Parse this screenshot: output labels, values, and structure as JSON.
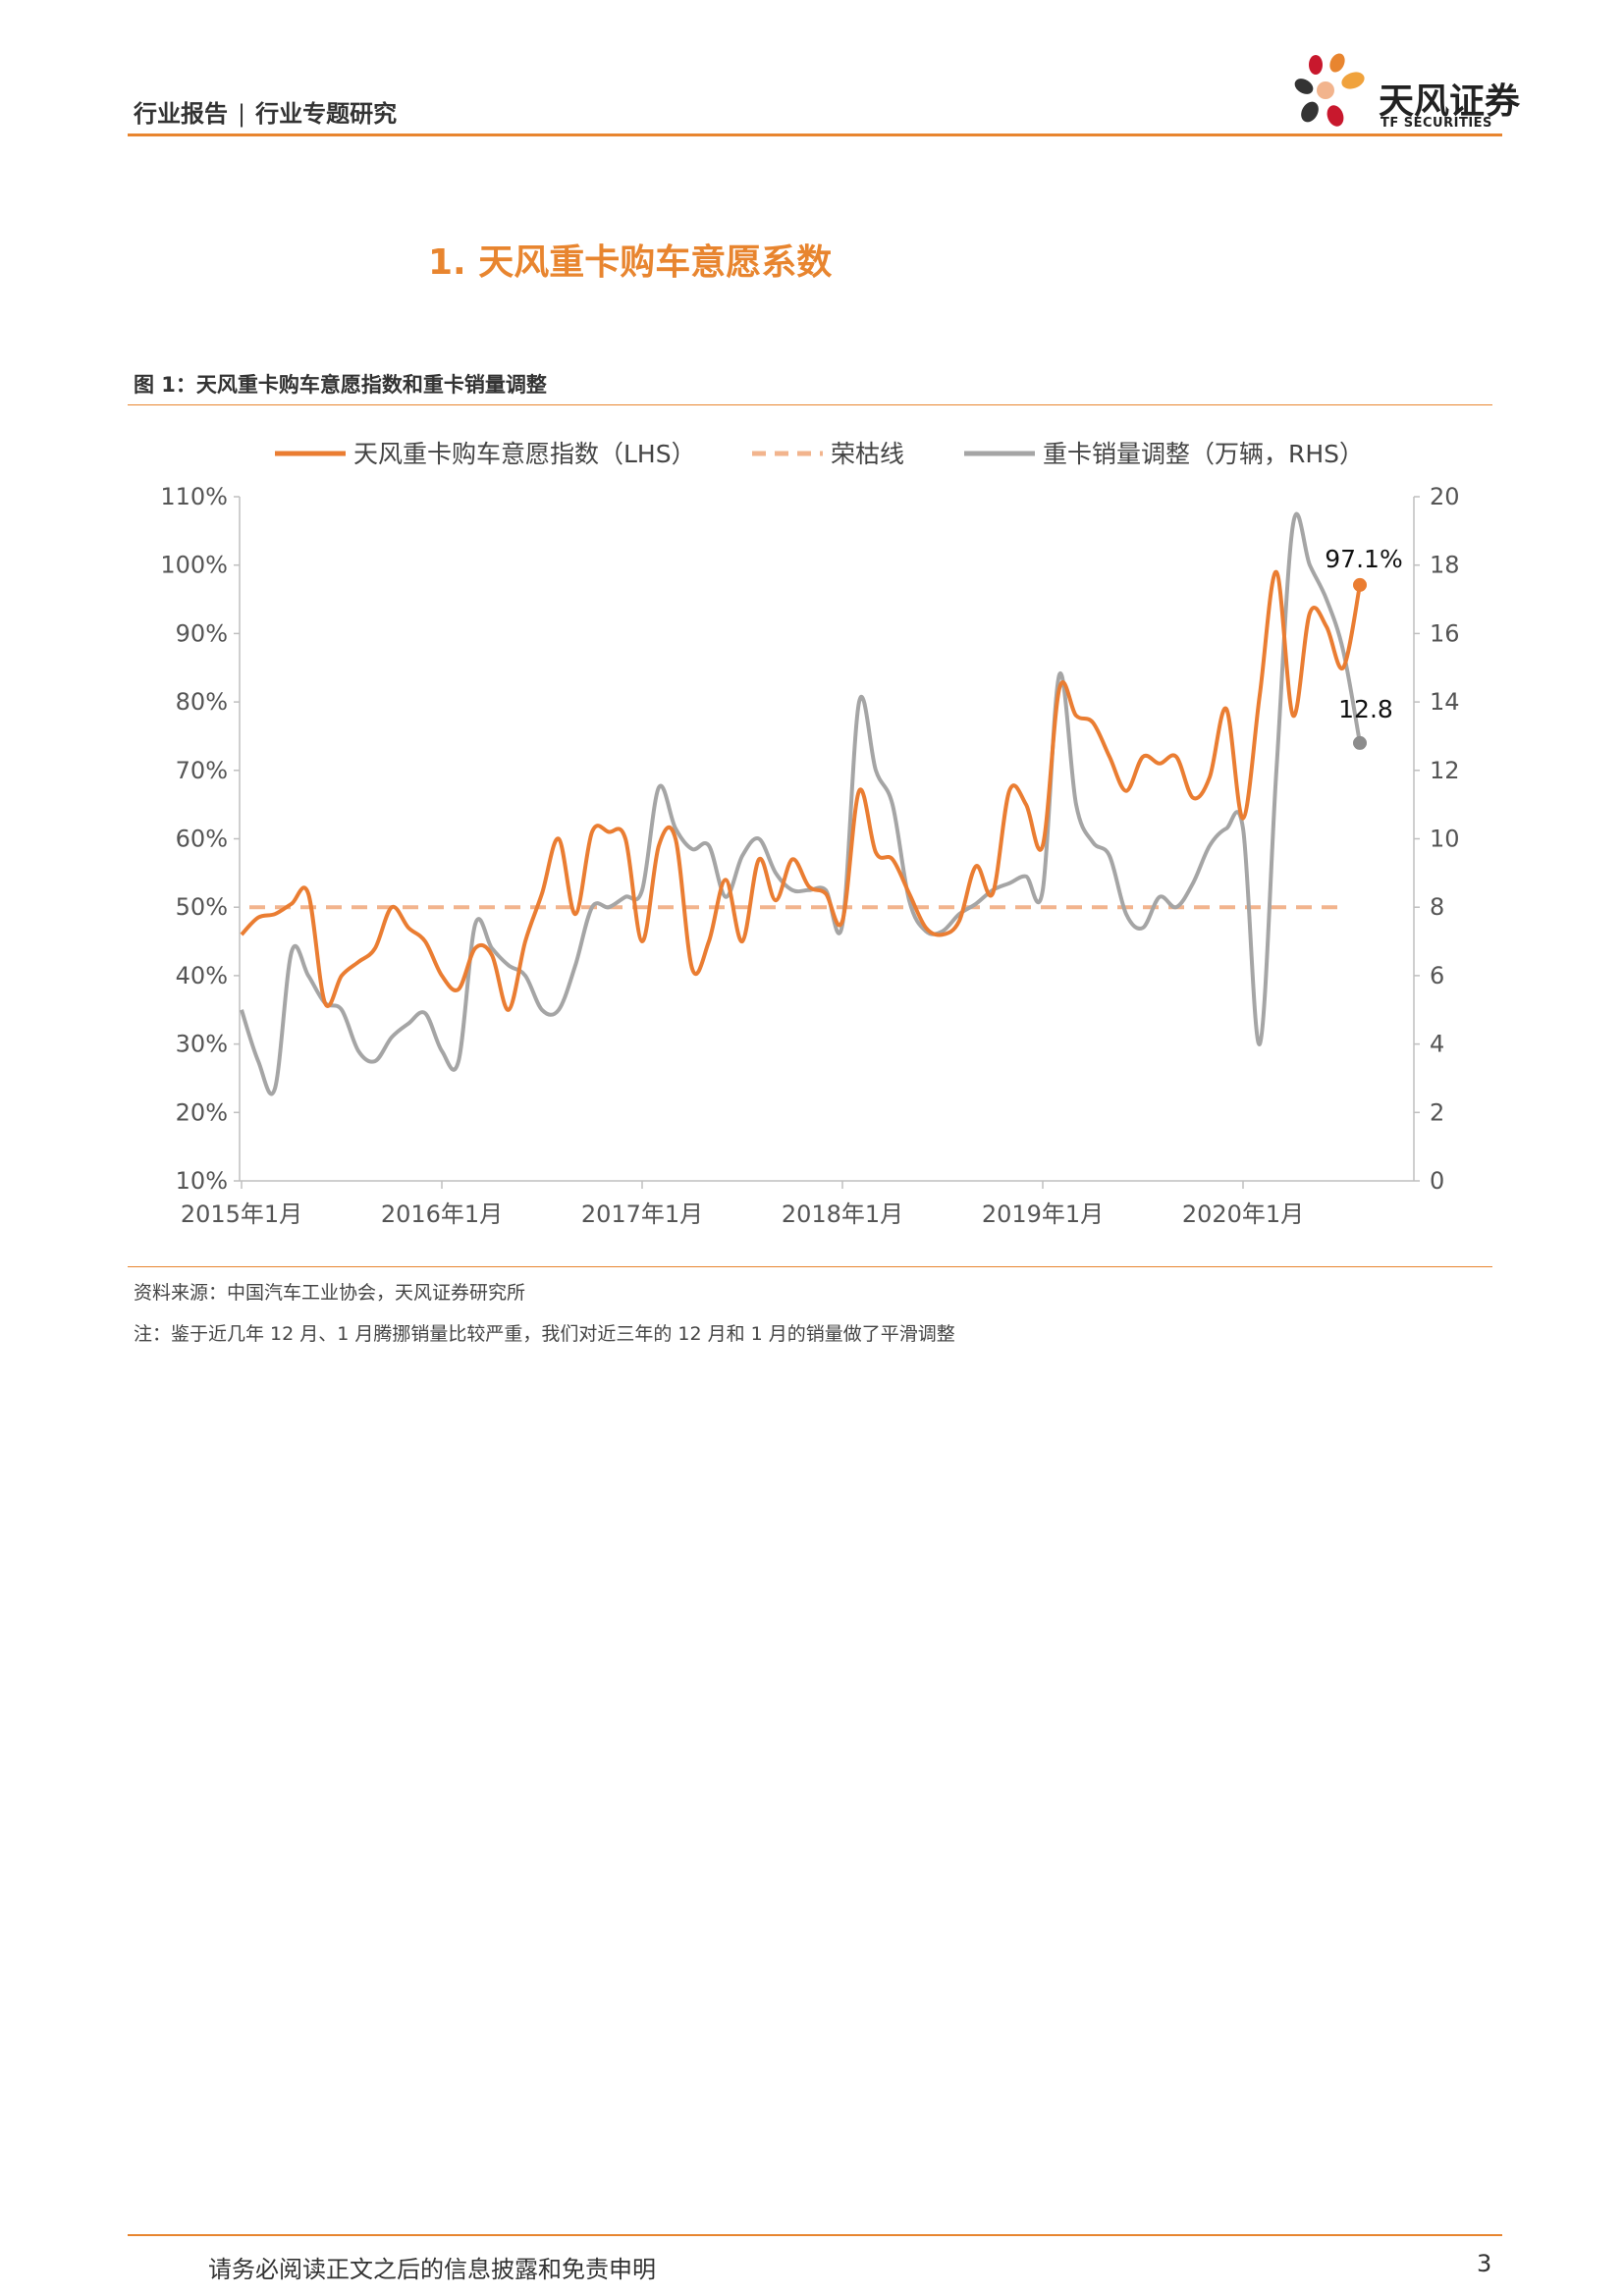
{
  "header": {
    "category": "行业报告",
    "separator": "|",
    "subcategory": "行业专题研究"
  },
  "logo": {
    "name": "天风证券",
    "sub": "TF SECURITIES"
  },
  "section_title": "1. 天风重卡购车意愿系数",
  "figure_title": "图 1：天风重卡购车意愿指数和重卡销量调整",
  "source_note": "资料来源：中国汽车工业协会，天风证券研究所",
  "remark_note": "注：鉴于近几年 12 月、1 月腾挪销量比较严重，我们对近三年的 12 月和 1 月的销量做了平滑调整",
  "footer": {
    "disclaimer": "请务必阅读正文之后的信息披露和免责申明",
    "page": "3"
  },
  "colors": {
    "accent": "#e8852f",
    "index_line": "#ea7d32",
    "rongku_line": "#f2b48d",
    "sales_line": "#a5a5a5",
    "axis": "#bfbfbf"
  },
  "chart_data": {
    "type": "line",
    "legend": [
      "天风重卡购车意愿指数（LHS）",
      "荣枯线",
      "重卡销量调整（万辆，RHS）"
    ],
    "legend_placement": "top",
    "grid": false,
    "x_ticks": [
      "2015年1月",
      "2016年1月",
      "2017年1月",
      "2018年1月",
      "2019年1月",
      "2020年1月"
    ],
    "y_left": {
      "min": 10,
      "max": 110,
      "ticks": [
        "110%",
        "100%",
        "90%",
        "80%",
        "70%",
        "60%",
        "50%",
        "40%",
        "30%",
        "20%",
        "10%"
      ]
    },
    "y_right": {
      "min": 0,
      "max": 20,
      "ticks": [
        "20",
        "18",
        "16",
        "14",
        "12",
        "10",
        "8",
        "6",
        "4",
        "2",
        "0"
      ]
    },
    "series": [
      {
        "name": "天风重卡购车意愿指数（LHS）",
        "axis": "left",
        "unit": "%",
        "start": "2015-01",
        "values": [
          46,
          48.5,
          49,
          50.5,
          52,
          36,
          40,
          42,
          44,
          50,
          47,
          45,
          40,
          38,
          44,
          43,
          35,
          45,
          52,
          60,
          49,
          61,
          61,
          60,
          45,
          59,
          60,
          41,
          45,
          54,
          45,
          57,
          51,
          57,
          53,
          52,
          48,
          67,
          58,
          57,
          52,
          47,
          46,
          48,
          56,
          52,
          67,
          65,
          59,
          82,
          78,
          77,
          72,
          67,
          72,
          71,
          72,
          66,
          69,
          79,
          63,
          81,
          99,
          78,
          93,
          91,
          85,
          97.1
        ]
      },
      {
        "name": "荣枯线",
        "axis": "left",
        "unit": "%",
        "value": 50
      },
      {
        "name": "重卡销量调整（万辆，RHS）",
        "axis": "right",
        "unit": "万辆",
        "start": "2015-01",
        "values": [
          5,
          3.5,
          2.7,
          6.7,
          6,
          5.2,
          5,
          3.8,
          3.5,
          4.2,
          4.6,
          4.9,
          3.8,
          3.5,
          7.5,
          6.8,
          6.3,
          6,
          5,
          5,
          6.3,
          8,
          8,
          8.3,
          8.5,
          11.5,
          10.3,
          9.7,
          9.8,
          8.3,
          9.5,
          10,
          9,
          8.5,
          8.5,
          8.5,
          7.5,
          14,
          12,
          11,
          8.2,
          7.3,
          7.3,
          7.8,
          8.1,
          8.5,
          8.7,
          8.9,
          8.5,
          14.8,
          11,
          9.9,
          9.5,
          7.8,
          7.4,
          8.3,
          8,
          8.7,
          9.8,
          10.3,
          10.3,
          4,
          12,
          19.2,
          18,
          17,
          15.5,
          12.8
        ]
      }
    ],
    "annotations": [
      {
        "text": "97.1%",
        "series": 0
      },
      {
        "text": "12.8",
        "series": 2
      }
    ]
  }
}
